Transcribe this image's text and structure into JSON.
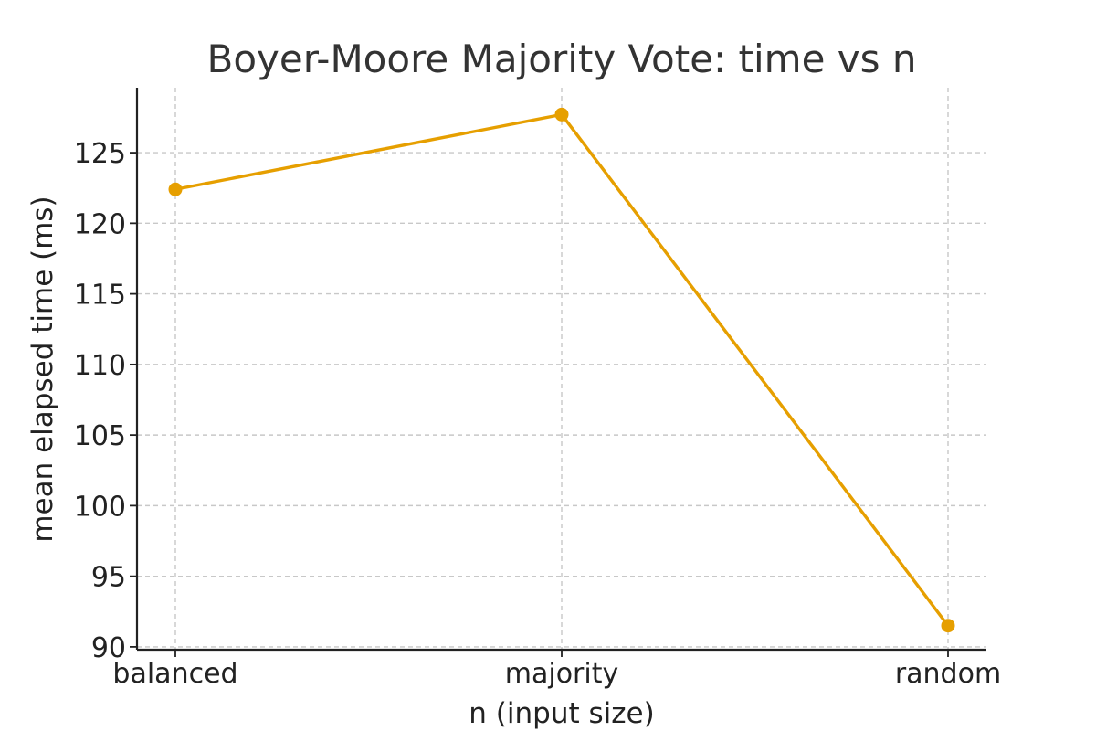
{
  "chart_data": {
    "type": "line",
    "title": "Boyer-Moore Majority Vote: time vs n",
    "xlabel": "n (input size)",
    "ylabel": "mean elapsed time (ms)",
    "categories": [
      "balanced",
      "majority",
      "random"
    ],
    "series": [
      {
        "values": [
          122.4,
          127.7,
          91.5
        ],
        "color": "#E69F00"
      }
    ],
    "ylim": [
      89.8,
      129.6
    ],
    "yticks": [
      90,
      95,
      100,
      105,
      110,
      115,
      120,
      125
    ],
    "grid": true,
    "legend": "none",
    "marker": "circle"
  }
}
